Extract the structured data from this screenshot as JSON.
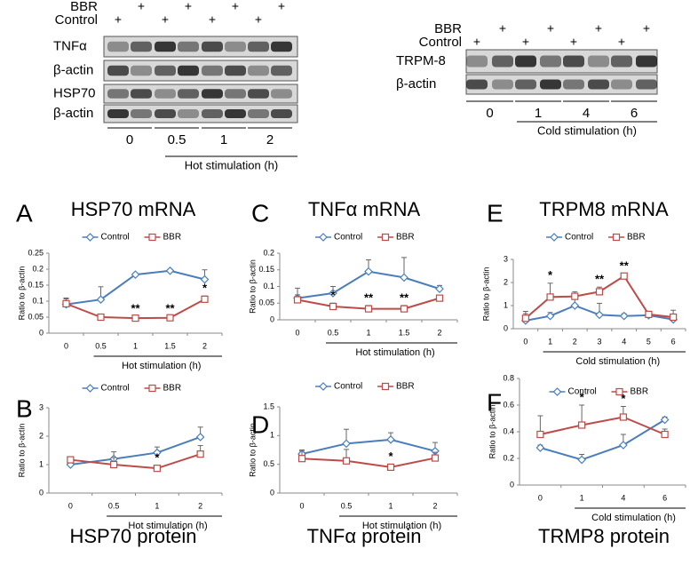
{
  "blots": {
    "left": {
      "bbr_label": "BBR",
      "control_label": "Control",
      "bbr_lanes": [
        "+",
        "+",
        "+",
        "+"
      ],
      "control_lanes": [
        "+",
        "+",
        "+",
        "+"
      ],
      "rows": [
        "TNFα",
        "β-actin",
        "HSP70",
        "β-actin"
      ],
      "groups": [
        "0",
        "0.5",
        "1",
        "2"
      ],
      "xlabel": "Hot stimulation (h)"
    },
    "right": {
      "bbr_label": "BBR",
      "control_label": "Control",
      "bbr_lanes": [
        "+",
        "+",
        "+",
        "+"
      ],
      "control_lanes": [
        "+",
        "+",
        "+",
        "+"
      ],
      "rows": [
        "TRPM-8",
        "β-actin"
      ],
      "groups": [
        "0",
        "1",
        "4",
        "6"
      ],
      "xlabel": "Cold stimulation (h)"
    }
  },
  "chart_data": [
    {
      "type": "line",
      "panel": "A",
      "title": "HSP70 mRNA",
      "ylabel": "Ratio to β-actin",
      "xlabel": "Hot stimulation (h)",
      "categories": [
        "0",
        "0.5",
        "1",
        "1.5",
        "2"
      ],
      "series": [
        {
          "name": "Control",
          "color": "#4a7ebb",
          "values": [
            0.09,
            0.105,
            0.183,
            0.195,
            0.168
          ],
          "errors": [
            0.02,
            0.04,
            0.005,
            0.005,
            0.03
          ]
        },
        {
          "name": "BBR",
          "color": "#be4b48",
          "values": [
            0.092,
            0.05,
            0.047,
            0.048,
            0.106
          ],
          "errors": [
            0.015,
            0.005,
            0.005,
            0.005,
            0.01
          ]
        }
      ],
      "ylim": [
        0,
        0.25
      ],
      "yticks": [
        0,
        0.05,
        0.1,
        0.15,
        0.2,
        0.25
      ],
      "annotations": [
        {
          "category": "1",
          "text": "**"
        },
        {
          "category": "1.5",
          "text": "**"
        },
        {
          "category": "2",
          "text": "*"
        }
      ]
    },
    {
      "type": "line",
      "panel": "C",
      "title": "TNFα mRNA",
      "ylabel": "Ratio to β-actin",
      "xlabel": "Hot stimulation (h)",
      "categories": [
        "0",
        "0.5",
        "1",
        "1.5",
        "2"
      ],
      "series": [
        {
          "name": "Control",
          "color": "#4a7ebb",
          "values": [
            0.065,
            0.08,
            0.145,
            0.127,
            0.093
          ],
          "errors": [
            0.03,
            0.02,
            0.035,
            0.06,
            0.01
          ]
        },
        {
          "name": "BBR",
          "color": "#be4b48",
          "values": [
            0.06,
            0.04,
            0.033,
            0.033,
            0.065
          ],
          "errors": [
            0.015,
            0.01,
            0.01,
            0.01,
            0.005
          ]
        }
      ],
      "ylim": [
        0,
        0.2
      ],
      "yticks": [
        0,
        0.05,
        0.1,
        0.15,
        0.2
      ],
      "annotations": [
        {
          "category": "0.5",
          "text": "*"
        },
        {
          "category": "1",
          "text": "**"
        },
        {
          "category": "1.5",
          "text": "**"
        }
      ]
    },
    {
      "type": "line",
      "panel": "E",
      "title": "TRPM8 mRNA",
      "ylabel": "Ratio to β-actin",
      "xlabel": "Cold stimulation (h)",
      "categories": [
        "0",
        "1",
        "2",
        "3",
        "4",
        "5",
        "6"
      ],
      "series": [
        {
          "name": "Control",
          "color": "#4a7ebb",
          "values": [
            0.35,
            0.55,
            1.0,
            0.6,
            0.55,
            0.58,
            0.4
          ],
          "errors": [
            0.3,
            0.15,
            0.3,
            0.5,
            0.1,
            0.15,
            0.2
          ]
        },
        {
          "name": "BBR",
          "color": "#be4b48",
          "values": [
            0.45,
            1.37,
            1.4,
            1.6,
            2.28,
            0.62,
            0.5
          ],
          "errors": [
            0.3,
            0.6,
            0.2,
            0.2,
            0.1,
            0.1,
            0.3
          ]
        }
      ],
      "ylim": [
        0,
        3
      ],
      "yticks": [
        0,
        1,
        2,
        3
      ],
      "annotations": [
        {
          "category": "1",
          "text": "*"
        },
        {
          "category": "3",
          "text": "**"
        },
        {
          "category": "4",
          "text": "**"
        }
      ]
    },
    {
      "type": "line",
      "panel": "B",
      "title": "HSP70 protein",
      "ylabel": "Ratio to β-actin",
      "xlabel": "Hot stimulation (h)",
      "categories": [
        "0",
        "0.5",
        "1",
        "2"
      ],
      "series": [
        {
          "name": "Control",
          "color": "#4a7ebb",
          "values": [
            1.0,
            1.2,
            1.42,
            1.97
          ],
          "errors": [
            0.05,
            0.25,
            0.2,
            0.35
          ]
        },
        {
          "name": "BBR",
          "color": "#be4b48",
          "values": [
            1.17,
            1.0,
            0.87,
            1.37
          ],
          "errors": [
            0.1,
            0.25,
            0.1,
            0.3
          ]
        }
      ],
      "ylim": [
        0,
        3
      ],
      "yticks": [
        0,
        1,
        2,
        3
      ],
      "annotations": [
        {
          "category": "1",
          "text": "*"
        }
      ]
    },
    {
      "type": "line",
      "panel": "D",
      "title": "TNFα protein",
      "ylabel": "Ratio to β-actin",
      "xlabel": "Hot stimulation (h)",
      "categories": [
        "0",
        "0.5",
        "1",
        "2"
      ],
      "series": [
        {
          "name": "Control",
          "color": "#4a7ebb",
          "values": [
            0.68,
            0.86,
            0.93,
            0.73
          ],
          "errors": [
            0.05,
            0.25,
            0.12,
            0.15
          ]
        },
        {
          "name": "BBR",
          "color": "#be4b48",
          "values": [
            0.6,
            0.56,
            0.45,
            0.61
          ],
          "errors": [
            0.15,
            0.2,
            0.05,
            0.1
          ]
        }
      ],
      "ylim": [
        0,
        1.5
      ],
      "yticks": [
        0,
        0.5,
        1,
        1.5
      ],
      "annotations": [
        {
          "category": "1",
          "text": "*"
        }
      ]
    },
    {
      "type": "line",
      "panel": "F",
      "title": "TRMP8 protein",
      "ylabel": "Ratio to β-actin",
      "xlabel": "Cold stimulation (h)",
      "categories": [
        "0",
        "1",
        "4",
        "6"
      ],
      "series": [
        {
          "name": "Control",
          "color": "#4a7ebb",
          "values": [
            0.28,
            0.19,
            0.3,
            0.49
          ],
          "errors": [
            0.02,
            0.04,
            0.08,
            0.02
          ]
        },
        {
          "name": "BBR",
          "color": "#be4b48",
          "values": [
            0.38,
            0.45,
            0.51,
            0.38
          ],
          "errors": [
            0.14,
            0.15,
            0.08,
            0.04
          ]
        }
      ],
      "ylim": [
        0,
        0.8
      ],
      "yticks": [
        0,
        0.2,
        0.4,
        0.6,
        0.8
      ],
      "annotations": [
        {
          "category": "1",
          "text": "*"
        },
        {
          "category": "4",
          "text": "*"
        }
      ]
    }
  ]
}
